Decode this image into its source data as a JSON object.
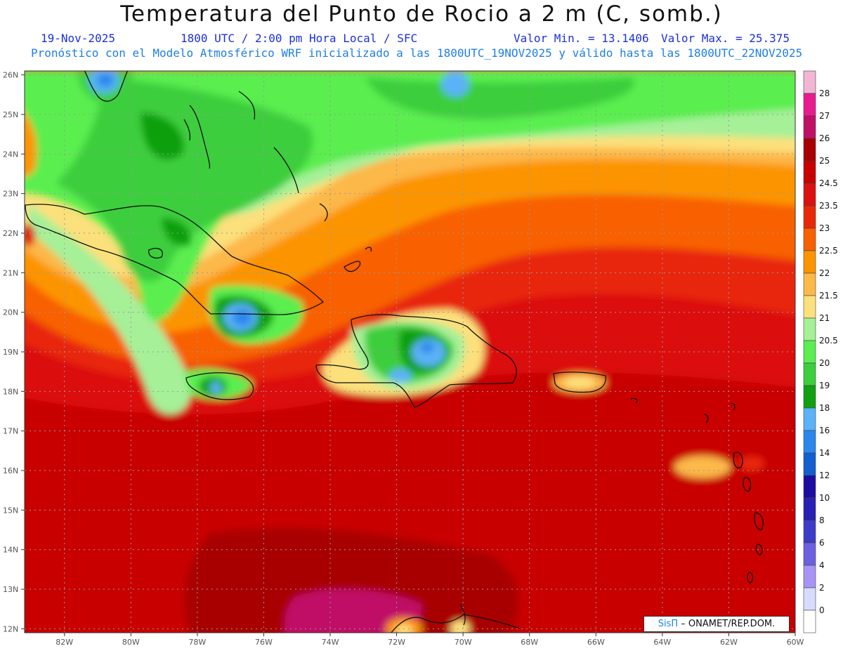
{
  "header": {
    "title": "Temperatura del Punto de Rocio a 2 m (C, somb.)",
    "date": "19-Nov-2025",
    "time_info": "1800 UTC / 2:00 pm Hora Local / SFC",
    "min_label": "Valor Min. = 13.1406",
    "max_label": "Valor Max. = 25.375",
    "model_info": "Pronóstico con el Modelo Atmosférico WRF inicializado a las 1800UTC_19NOV2025 y válido hasta las  1800UTC_22NOV2025"
  },
  "map": {
    "lon_labels": [
      "82W",
      "80W",
      "78W",
      "76W",
      "74W",
      "72W",
      "70W",
      "68W",
      "66W",
      "64W",
      "62W",
      "60W"
    ],
    "lat_labels": [
      "26N",
      "25N",
      "24N",
      "23N",
      "22N",
      "21N",
      "20N",
      "19N",
      "18N",
      "17N",
      "16N",
      "15N",
      "14N",
      "13N",
      "12N"
    ],
    "lon_range": [
      -83.2,
      -60
    ],
    "lat_range": [
      11.9,
      26.1
    ]
  },
  "legend": {
    "levels": [
      {
        "label": "28",
        "color": "#f2b5d4"
      },
      {
        "label": "27",
        "color": "#e81c8e"
      },
      {
        "label": "26",
        "color": "#c01066"
      },
      {
        "label": "25",
        "color": "#a80000"
      },
      {
        "label": "24.5",
        "color": "#c80000"
      },
      {
        "label": "23.5",
        "color": "#dc1010"
      },
      {
        "label": "23",
        "color": "#e82808"
      },
      {
        "label": "22.5",
        "color": "#f86000"
      },
      {
        "label": "22",
        "color": "#fc9400"
      },
      {
        "label": "21.5",
        "color": "#fcb848"
      },
      {
        "label": "21",
        "color": "#fce07c"
      },
      {
        "label": "20.5",
        "color": "#a6f098"
      },
      {
        "label": "20",
        "color": "#5aee50"
      },
      {
        "label": "19",
        "color": "#3cce3c"
      },
      {
        "label": "18",
        "color": "#10a010"
      },
      {
        "label": "16",
        "color": "#5ab2f8"
      },
      {
        "label": "14",
        "color": "#2a88ec"
      },
      {
        "label": "12",
        "color": "#1260d0"
      },
      {
        "label": "10",
        "color": "#1c0ca0"
      },
      {
        "label": "8",
        "color": "#2820b4"
      },
      {
        "label": "6",
        "color": "#3c3cc8"
      },
      {
        "label": "4",
        "color": "#6c60e0"
      },
      {
        "label": "2",
        "color": "#a894f4"
      },
      {
        "label": "0",
        "color": "#d8dcfc"
      },
      {
        "label": "",
        "color": "#ffffff"
      }
    ]
  },
  "credit": {
    "sis": "SisΠ",
    "rest": " – ONAMET/REP.DOM."
  }
}
